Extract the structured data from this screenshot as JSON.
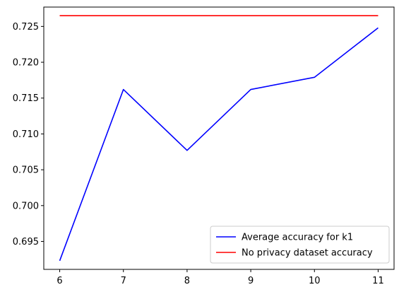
{
  "chart_data": {
    "type": "line",
    "x": [
      6,
      7,
      8,
      9,
      10,
      11
    ],
    "series": [
      {
        "name": "Average accuracy for k1",
        "color": "#0000ff",
        "values": [
          0.6923,
          0.7162,
          0.7077,
          0.7162,
          0.7179,
          0.7248
        ]
      },
      {
        "name": "No privacy dataset accuracy",
        "color": "#ff0000",
        "values": [
          0.7265,
          0.7265,
          0.7265,
          0.7265,
          0.7265,
          0.7265
        ]
      }
    ],
    "title": "",
    "xlabel": "",
    "ylabel": "",
    "xlim": [
      5.75,
      11.25
    ],
    "ylim": [
      0.6911,
      0.7277
    ],
    "xticks": [
      "6",
      "7",
      "8",
      "9",
      "10",
      "11"
    ],
    "yticks": [
      "0.695",
      "0.700",
      "0.705",
      "0.710",
      "0.715",
      "0.720",
      "0.725"
    ],
    "grid": false,
    "legend_position": "bottom-right"
  }
}
